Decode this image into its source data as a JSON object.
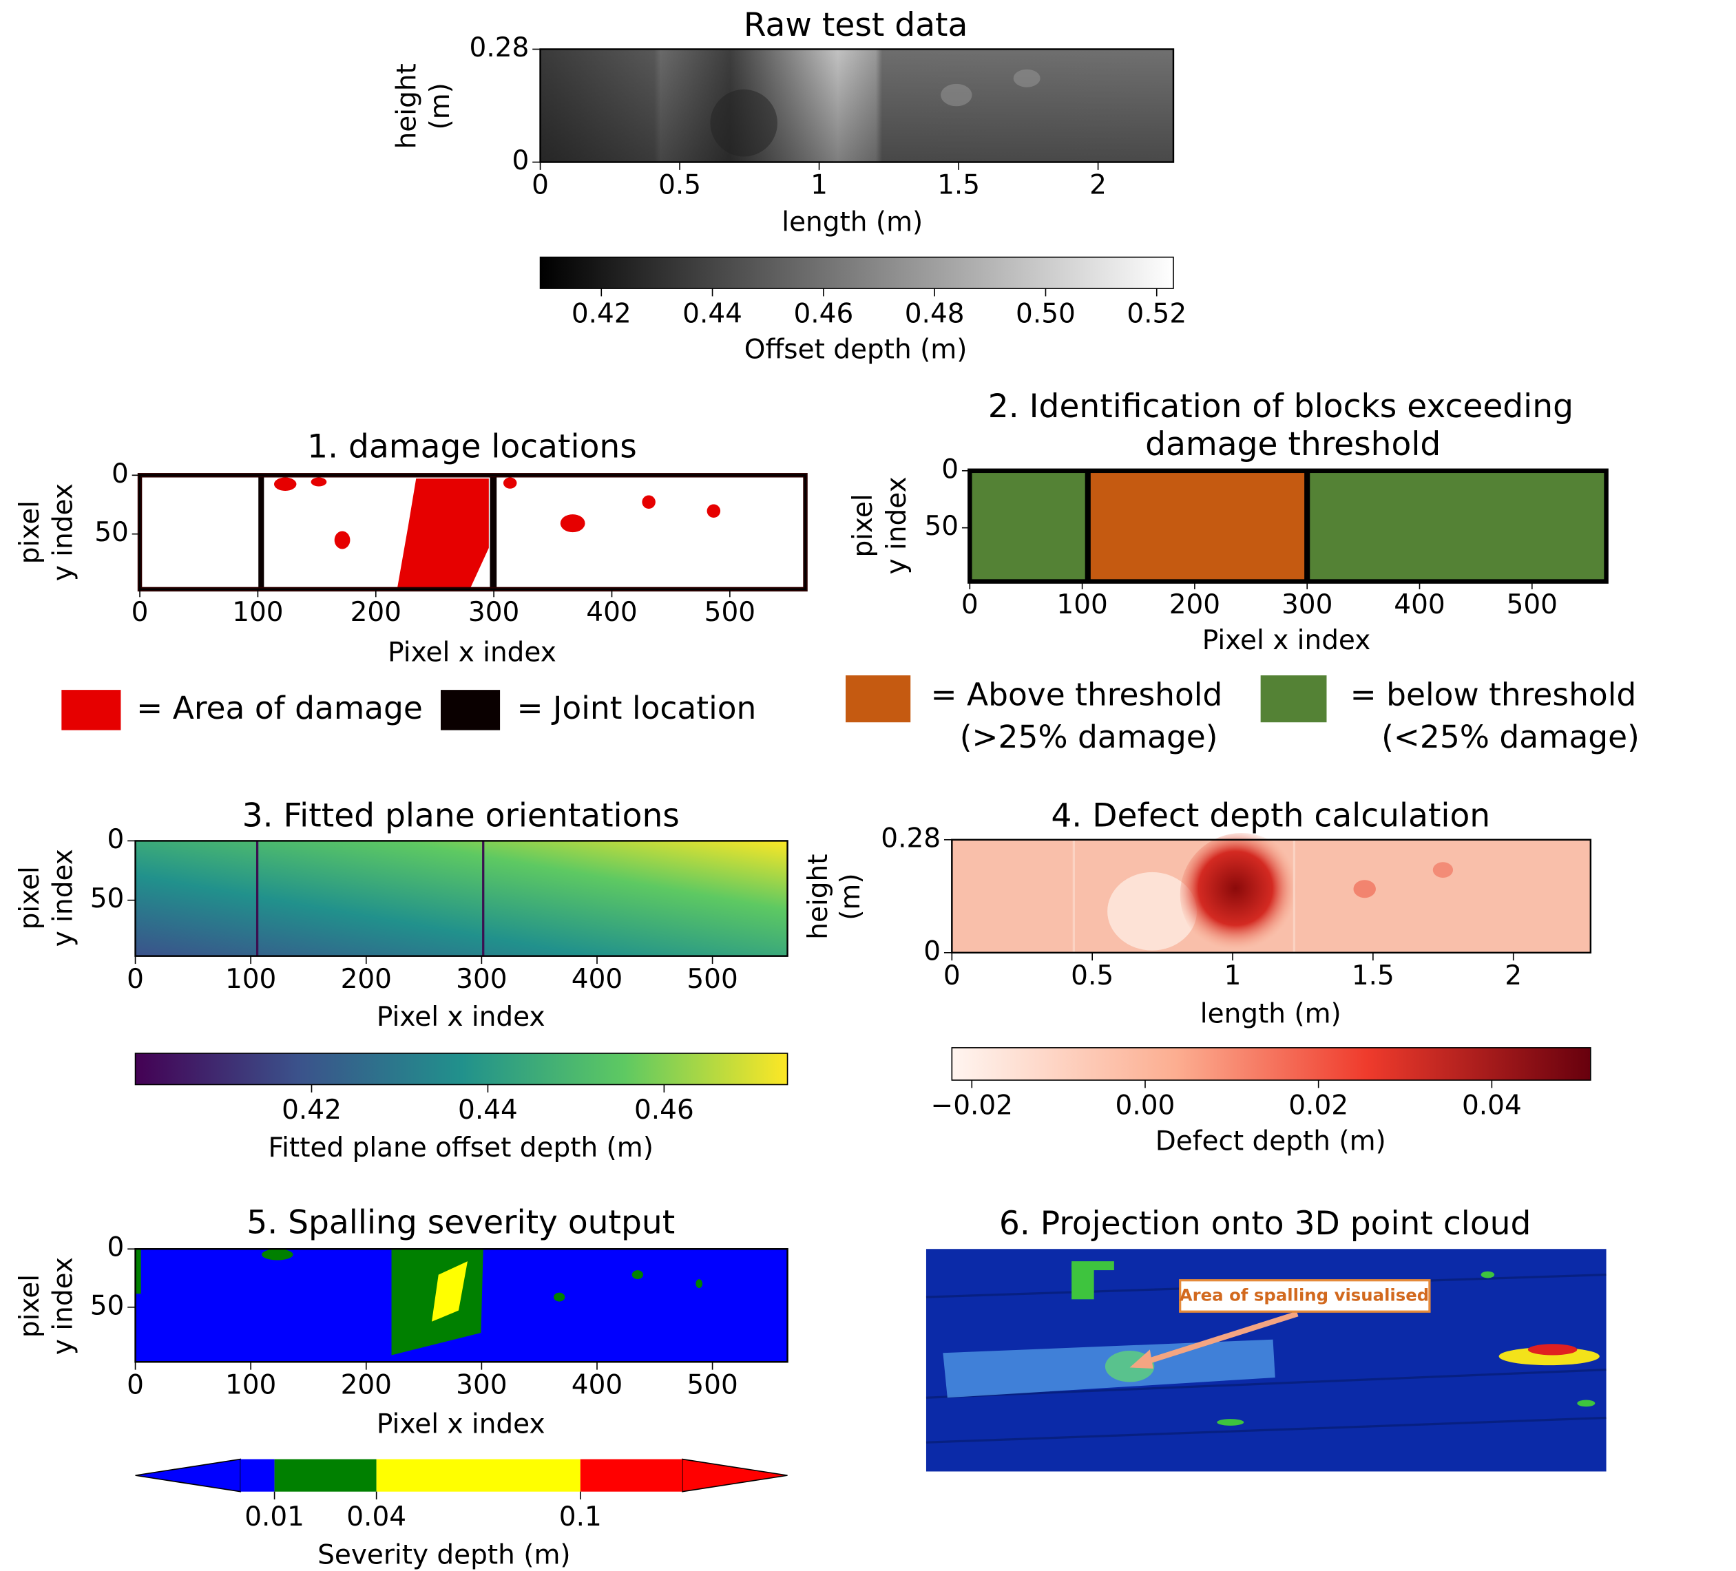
{
  "chart_data": [
    {
      "type": "heatmap",
      "title": [
        "Raw test data"
      ],
      "x_label": "length (m)",
      "y_label": [
        "height",
        "(m)"
      ],
      "xlim": [
        0,
        2.27
      ],
      "xticks": [
        0,
        0.5,
        1,
        1.5,
        2
      ],
      "ylim": [
        0,
        0.28
      ],
      "yticks": [
        0,
        0.28
      ],
      "colorbar": {
        "cmap": "gray",
        "label": "Offset depth (m)",
        "lim": [
          0.409,
          0.523
        ],
        "ticks": [
          0.42,
          0.44,
          0.46,
          0.48,
          {
            "value": 0.5,
            "label": "0.50"
          },
          0.52
        ]
      }
    },
    {
      "type": "heatmap",
      "title": [
        "1. damage locations"
      ],
      "x_label": "Pixel x index",
      "y_label": [
        "pixel",
        "y index"
      ],
      "xlim": [
        0,
        564
      ],
      "xticks": [
        0,
        100,
        200,
        300,
        400,
        500
      ],
      "ylim": [
        97,
        0
      ],
      "yticks": [
        0,
        50
      ],
      "legend": [
        {
          "name": [
            "= Area of damage"
          ],
          "color": "#e60000"
        },
        {
          "name": [
            "= Joint location"
          ],
          "color": "#0a0000"
        }
      ]
    },
    {
      "type": "blocks",
      "title": [
        "2. Identification of blocks exceeding",
        "damage threshold"
      ],
      "x_label": "Pixel x index",
      "y_label": [
        "pixel",
        "y index"
      ],
      "xlim": [
        0,
        566
      ],
      "xticks": [
        0,
        100,
        200,
        300,
        400,
        500
      ],
      "ylim": [
        97,
        0
      ],
      "yticks": [
        0,
        50
      ],
      "joints": [
        105,
        300
      ],
      "block_colors": [
        "#548235",
        "#c55a11",
        "#548235"
      ],
      "legend": [
        {
          "name": [
            "= Above threshold",
            "(>25% damage)"
          ],
          "color": "#c55a11"
        },
        {
          "name": [
            "= below threshold",
            "(<25% damage)"
          ],
          "color": "#548235"
        }
      ]
    },
    {
      "type": "heatmap",
      "title": [
        "3. Fitted plane orientations"
      ],
      "x_label": "Pixel x index",
      "y_label": [
        "pixel",
        "y index"
      ],
      "xlim": [
        0,
        565
      ],
      "xticks": [
        0,
        100,
        200,
        300,
        400,
        500
      ],
      "ylim": [
        97,
        0
      ],
      "yticks": [
        0,
        50
      ],
      "colorbar": {
        "cmap": "viridis",
        "label": "Fitted plane offset depth (m)",
        "lim": [
          0.4,
          0.474
        ],
        "ticks": [
          0.42,
          0.44,
          0.46
        ]
      }
    },
    {
      "type": "heatmap",
      "title": [
        "4. Defect depth calculation"
      ],
      "x_label": "length (m)",
      "y_label": [
        "height",
        "(m)"
      ],
      "xlim": [
        0,
        2.275
      ],
      "xticks": [
        0,
        0.5,
        1,
        1.5,
        2
      ],
      "ylim": [
        0,
        0.28
      ],
      "yticks": [
        0,
        0.28
      ],
      "colorbar": {
        "cmap": "Reds",
        "label": "Defect depth (m)",
        "lim": [
          -0.0223,
          0.0514
        ],
        "ticks": [
          {
            "value": -0.02,
            "label": "−0.02"
          },
          {
            "value": 0,
            "label": "0.00"
          },
          0.02,
          0.04
        ]
      }
    },
    {
      "type": "heatmap",
      "title": [
        "5. Spalling severity output"
      ],
      "x_label": "Pixel x index",
      "y_label": [
        "pixel",
        "y index"
      ],
      "xlim": [
        0,
        565
      ],
      "xticks": [
        0,
        100,
        200,
        300,
        400,
        500
      ],
      "ylim": [
        97,
        0
      ],
      "yticks": [
        0,
        50
      ],
      "colorbar": {
        "cmap": "discrete",
        "label": "Severity depth (m)",
        "bounds": [
          0,
          0.01,
          0.04,
          0.1,
          0.13
        ],
        "colors": [
          "#0000ff",
          "#008000",
          "#ffff00",
          "#ff0000"
        ],
        "extend": "both",
        "ticks": [
          0.01,
          0.04,
          0.1
        ]
      }
    },
    {
      "type": "image",
      "title": [
        "6. Projection onto 3D point cloud"
      ],
      "annotation": "Area of spalling visualised"
    }
  ]
}
